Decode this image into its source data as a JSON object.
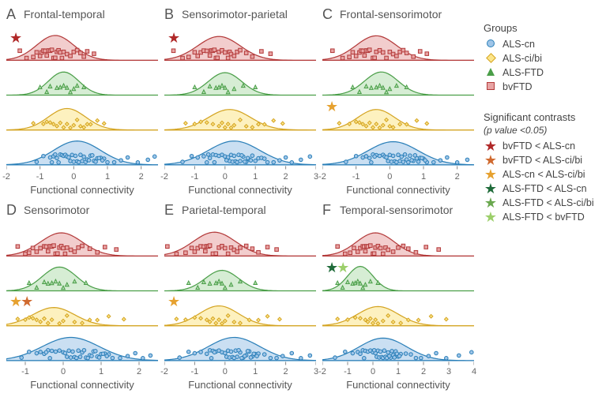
{
  "groups": [
    {
      "id": "als-cn",
      "label": "ALS-cn",
      "fill": "#9fc5e8",
      "stroke": "#2a7fb8",
      "marker": "circle",
      "y": 0
    },
    {
      "id": "als-cibi",
      "label": "ALS-ci/bi",
      "fill": "#fce58a",
      "stroke": "#d4a422",
      "marker": "diamond",
      "y": 1
    },
    {
      "id": "als-ftd",
      "label": "ALS-FTD",
      "fill": "#b5deb1",
      "stroke": "#4a9e48",
      "marker": "triangle",
      "y": 2
    },
    {
      "id": "bvftd",
      "label": "bvFTD",
      "fill": "#e8a4a4",
      "stroke": "#b33a3a",
      "marker": "square",
      "y": 3
    }
  ],
  "contrasts": [
    {
      "id": "c1",
      "label": "bvFTD < ALS-cn",
      "star_color": "#b02828"
    },
    {
      "id": "c2",
      "label": "bvFTD < ALS-ci/bi",
      "star_color": "#d06a2f"
    },
    {
      "id": "c3",
      "label": "ALS-cn < ALS-ci/bi",
      "star_color": "#e6a12f"
    },
    {
      "id": "c4",
      "label": "ALS-FTD < ALS-cn",
      "star_color": "#1f6b3a"
    },
    {
      "id": "c5",
      "label": "ALS-FTD < ALS-ci/bi",
      "star_color": "#6aa84f"
    },
    {
      "id": "c6",
      "label": "ALS-FTD < bvFTD",
      "star_color": "#9ccf6a"
    }
  ],
  "legend_title_groups": "Groups",
  "legend_title_contrasts": "Significant contrasts",
  "legend_sub_contrasts": "(p value <0.05)",
  "xlabel": "Functional connectivity",
  "panel_style": {
    "background": "#ffffff",
    "axis_color": "#888888",
    "tick_color": "#666666",
    "fill_opacity": 0.55,
    "stroke_width": 1.2,
    "marker_size": 4.5,
    "jitter_height": 0.24,
    "plot_h_per_group": 0.9
  },
  "panels": [
    {
      "id": "A",
      "title": "Frontal-temporal",
      "xlim": [
        -2,
        2.5
      ],
      "xticks": [
        -2,
        -1,
        0,
        1,
        2
      ],
      "stars": [
        {
          "contrast": "c1",
          "at_group": 3
        }
      ],
      "densities": {
        "als-cn": {
          "mu": 0.1,
          "sigma": 0.7,
          "h": 0.72
        },
        "als-cibi": {
          "mu": -0.2,
          "sigma": 0.55,
          "h": 0.65
        },
        "als-ftd": {
          "mu": -0.3,
          "sigma": 0.45,
          "h": 0.7
        },
        "bvftd": {
          "mu": -0.55,
          "sigma": 0.55,
          "h": 0.75
        }
      },
      "points": {
        "als-cn": [
          -1.1,
          -0.9,
          -0.7,
          -0.6,
          -0.5,
          -0.4,
          -0.35,
          -0.3,
          -0.25,
          -0.2,
          -0.15,
          -0.1,
          -0.05,
          0,
          0.05,
          0.1,
          0.15,
          0.2,
          0.25,
          0.3,
          0.35,
          0.4,
          0.5,
          0.6,
          0.7,
          0.8,
          0.9,
          1.0,
          1.2,
          1.4,
          1.6,
          1.9,
          2.2,
          2.4,
          -0.45,
          -0.55,
          -0.65,
          0.45,
          0.55,
          0.65,
          0.75,
          0.85
        ],
        "als-cibi": [
          -1.2,
          -0.9,
          -0.8,
          -0.7,
          -0.6,
          -0.5,
          -0.4,
          -0.3,
          -0.2,
          -0.1,
          0,
          0.1,
          0.2,
          0.3,
          0.4,
          0.5,
          0.7,
          0.9
        ],
        "als-ftd": [
          -1.0,
          -0.8,
          -0.7,
          -0.5,
          -0.4,
          -0.3,
          -0.2,
          -0.1,
          0,
          0.1,
          0.3
        ],
        "bvftd": [
          -1.6,
          -1.4,
          -1.2,
          -1.1,
          -1.0,
          -0.95,
          -0.9,
          -0.85,
          -0.8,
          -0.75,
          -0.7,
          -0.65,
          -0.6,
          -0.55,
          -0.5,
          -0.45,
          -0.4,
          -0.35,
          -0.3,
          -0.2,
          -0.1,
          0,
          0.1,
          0.2,
          0.3,
          0.4,
          0.6
        ]
      }
    },
    {
      "id": "B",
      "title": "Sensorimotor-parietal",
      "xlim": [
        -2,
        3
      ],
      "xticks": [
        -2,
        -1,
        0,
        1,
        2,
        3
      ],
      "stars": [
        {
          "contrast": "c1",
          "at_group": 3
        }
      ],
      "densities": {
        "als-cn": {
          "mu": 0.3,
          "sigma": 0.85,
          "h": 0.72
        },
        "als-cibi": {
          "mu": 0.15,
          "sigma": 0.7,
          "h": 0.62
        },
        "als-ftd": {
          "mu": 0.0,
          "sigma": 0.55,
          "h": 0.68
        },
        "bvftd": {
          "mu": -0.2,
          "sigma": 0.7,
          "h": 0.72
        }
      },
      "points": {
        "als-cn": [
          -1.4,
          -1.1,
          -0.9,
          -0.7,
          -0.5,
          -0.4,
          -0.3,
          -0.2,
          -0.1,
          0,
          0.1,
          0.15,
          0.2,
          0.25,
          0.3,
          0.35,
          0.4,
          0.45,
          0.5,
          0.6,
          0.7,
          0.8,
          0.9,
          1.0,
          1.1,
          1.2,
          1.3,
          1.4,
          1.6,
          1.8,
          2.0,
          2.2,
          2.5,
          2.8,
          -0.6,
          -0.55,
          -0.35,
          0.05,
          0.55,
          0.65,
          0.75,
          0.85
        ],
        "als-cibi": [
          -1.3,
          -1.0,
          -0.8,
          -0.6,
          -0.4,
          -0.2,
          -0.1,
          0,
          0.1,
          0.2,
          0.3,
          0.5,
          0.7,
          0.9,
          1.1,
          1.3,
          1.6,
          1.9
        ],
        "als-ftd": [
          -1.0,
          -0.7,
          -0.5,
          -0.3,
          -0.2,
          -0.1,
          0,
          0.1,
          0.3,
          0.6,
          1.0
        ],
        "bvftd": [
          -1.7,
          -1.4,
          -1.2,
          -1.0,
          -0.9,
          -0.8,
          -0.7,
          -0.6,
          -0.5,
          -0.45,
          -0.4,
          -0.35,
          -0.3,
          -0.25,
          -0.2,
          -0.1,
          0,
          0.1,
          0.15,
          0.2,
          0.3,
          0.4,
          0.5,
          0.7,
          0.9,
          1.2,
          1.5
        ]
      }
    },
    {
      "id": "C",
      "title": "Frontal-sensorimotor",
      "xlim": [
        -2,
        2.5
      ],
      "xticks": [
        -2,
        -1,
        0,
        1,
        2
      ],
      "stars": [
        {
          "contrast": "c3",
          "at_group": 1
        }
      ],
      "densities": {
        "als-cn": {
          "mu": 0.1,
          "sigma": 0.75,
          "h": 0.7
        },
        "als-cibi": {
          "mu": -0.4,
          "sigma": 0.55,
          "h": 0.62
        },
        "als-ftd": {
          "mu": -0.25,
          "sigma": 0.5,
          "h": 0.7
        },
        "bvftd": {
          "mu": -0.4,
          "sigma": 0.6,
          "h": 0.74
        }
      },
      "points": {
        "als-cn": [
          -1.3,
          -1.0,
          -0.8,
          -0.7,
          -0.6,
          -0.5,
          -0.4,
          -0.3,
          -0.2,
          -0.15,
          -0.1,
          -0.05,
          0,
          0.05,
          0.1,
          0.15,
          0.2,
          0.25,
          0.3,
          0.35,
          0.4,
          0.5,
          0.6,
          0.7,
          0.8,
          0.9,
          1.0,
          1.1,
          1.3,
          1.5,
          1.7,
          2.0,
          2.3,
          -0.45,
          -0.55,
          0.45,
          0.55,
          0.65,
          0.75,
          0.85,
          0.95,
          1.05
        ],
        "als-cibi": [
          -1.5,
          -1.2,
          -1.0,
          -0.9,
          -0.8,
          -0.7,
          -0.6,
          -0.5,
          -0.4,
          -0.3,
          -0.2,
          -0.1,
          0,
          0.1,
          0.3,
          0.5,
          0.8,
          1.1
        ],
        "als-ftd": [
          -1.1,
          -0.9,
          -0.7,
          -0.55,
          -0.4,
          -0.3,
          -0.2,
          -0.1,
          0,
          0.2,
          0.5
        ],
        "bvftd": [
          -1.7,
          -1.4,
          -1.2,
          -1.1,
          -1.0,
          -0.9,
          -0.85,
          -0.8,
          -0.75,
          -0.7,
          -0.65,
          -0.6,
          -0.5,
          -0.45,
          -0.4,
          -0.3,
          -0.2,
          -0.1,
          0,
          0.1,
          0.2,
          0.3,
          0.4,
          0.5,
          0.7,
          0.9,
          1.1
        ]
      }
    },
    {
      "id": "D",
      "title": "Sensorimotor",
      "xlim": [
        -1.5,
        2.5
      ],
      "xticks": [
        -1,
        0,
        1,
        2
      ],
      "stars": [
        {
          "contrast": "c3",
          "at_group": 1
        },
        {
          "contrast": "c2",
          "at_group": 1
        }
      ],
      "densities": {
        "als-cn": {
          "mu": 0.2,
          "sigma": 0.75,
          "h": 0.7
        },
        "als-cibi": {
          "mu": -0.25,
          "sigma": 0.55,
          "h": 0.55
        },
        "als-ftd": {
          "mu": -0.1,
          "sigma": 0.45,
          "h": 0.72
        },
        "bvftd": {
          "mu": -0.05,
          "sigma": 0.55,
          "h": 0.7
        }
      },
      "points": {
        "als-cn": [
          -1.1,
          -0.9,
          -0.7,
          -0.6,
          -0.5,
          -0.4,
          -0.3,
          -0.2,
          -0.1,
          0,
          0.05,
          0.1,
          0.15,
          0.2,
          0.25,
          0.3,
          0.35,
          0.4,
          0.45,
          0.5,
          0.6,
          0.7,
          0.8,
          0.9,
          1.0,
          1.1,
          1.2,
          1.3,
          1.5,
          1.7,
          1.9,
          2.1,
          2.3,
          -0.45,
          -0.35,
          0.55,
          0.65,
          0.75,
          0.85,
          0.95,
          1.05,
          1.15
        ],
        "als-cibi": [
          -1.2,
          -1.0,
          -0.9,
          -0.8,
          -0.7,
          -0.6,
          -0.5,
          -0.4,
          -0.3,
          -0.1,
          0,
          0.1,
          0.3,
          0.5,
          0.7,
          0.9,
          1.2,
          1.6
        ],
        "als-ftd": [
          -0.9,
          -0.7,
          -0.5,
          -0.4,
          -0.3,
          -0.2,
          -0.1,
          0,
          0.1,
          0.3,
          0.6
        ],
        "bvftd": [
          -1.2,
          -1.0,
          -0.9,
          -0.8,
          -0.7,
          -0.6,
          -0.5,
          -0.45,
          -0.4,
          -0.35,
          -0.3,
          -0.25,
          -0.2,
          -0.15,
          -0.1,
          -0.05,
          0,
          0.05,
          0.1,
          0.2,
          0.3,
          0.4,
          0.5,
          0.7,
          0.9,
          1.1,
          1.4
        ]
      }
    },
    {
      "id": "E",
      "title": "Parietal-temporal",
      "xlim": [
        -2,
        3
      ],
      "xticks": [
        -2,
        -1,
        0,
        1,
        2,
        3
      ],
      "stars": [
        {
          "contrast": "c3",
          "at_group": 1
        }
      ],
      "densities": {
        "als-cn": {
          "mu": 0.3,
          "sigma": 0.85,
          "h": 0.7
        },
        "als-cibi": {
          "mu": -0.2,
          "sigma": 0.65,
          "h": 0.6
        },
        "als-ftd": {
          "mu": -0.1,
          "sigma": 0.55,
          "h": 0.62
        },
        "bvftd": {
          "mu": -0.35,
          "sigma": 0.7,
          "h": 0.72
        }
      },
      "points": {
        "als-cn": [
          -1.5,
          -1.2,
          -1.0,
          -0.8,
          -0.6,
          -0.5,
          -0.4,
          -0.3,
          -0.2,
          -0.1,
          0,
          0.05,
          0.1,
          0.15,
          0.2,
          0.25,
          0.3,
          0.35,
          0.4,
          0.5,
          0.6,
          0.7,
          0.8,
          0.9,
          1.0,
          1.1,
          1.3,
          1.5,
          1.7,
          1.9,
          2.2,
          2.5,
          2.8,
          -0.35,
          -0.45,
          0.45,
          0.55,
          0.65,
          0.75,
          0.85,
          0.95,
          1.05
        ],
        "als-cibi": [
          -1.6,
          -1.3,
          -1.0,
          -0.8,
          -0.6,
          -0.5,
          -0.4,
          -0.3,
          -0.2,
          -0.1,
          0,
          0.1,
          0.3,
          0.5,
          0.8,
          1.1,
          1.4,
          1.8
        ],
        "als-ftd": [
          -1.2,
          -0.9,
          -0.7,
          -0.5,
          -0.3,
          -0.2,
          -0.1,
          0,
          0.2,
          0.5,
          1.0
        ],
        "bvftd": [
          -1.9,
          -1.6,
          -1.3,
          -1.1,
          -1.0,
          -0.9,
          -0.8,
          -0.7,
          -0.65,
          -0.6,
          -0.55,
          -0.5,
          -0.4,
          -0.3,
          -0.2,
          -0.1,
          0,
          0.1,
          0.2,
          0.3,
          0.4,
          0.5,
          0.7,
          0.9,
          1.1,
          1.4,
          1.7
        ]
      }
    },
    {
      "id": "F",
      "title": "Temporal-sensorimotor",
      "xlim": [
        -2,
        4
      ],
      "xticks": [
        -2,
        -1,
        0,
        1,
        2,
        3,
        4
      ],
      "stars": [
        {
          "contrast": "c4",
          "at_group": 2
        },
        {
          "contrast": "c6",
          "at_group": 2
        }
      ],
      "densities": {
        "als-cn": {
          "mu": 0.4,
          "sigma": 0.95,
          "h": 0.68
        },
        "als-cibi": {
          "mu": 0.2,
          "sigma": 0.8,
          "h": 0.58
        },
        "als-ftd": {
          "mu": -0.5,
          "sigma": 0.5,
          "h": 0.74
        },
        "bvftd": {
          "mu": 0.1,
          "sigma": 0.75,
          "h": 0.7
        }
      },
      "points": {
        "als-cn": [
          -1.5,
          -1.1,
          -0.8,
          -0.6,
          -0.5,
          -0.4,
          -0.3,
          -0.2,
          -0.1,
          0,
          0.1,
          0.15,
          0.2,
          0.25,
          0.3,
          0.35,
          0.4,
          0.45,
          0.5,
          0.6,
          0.7,
          0.8,
          0.9,
          1.0,
          1.1,
          1.3,
          1.5,
          1.7,
          1.9,
          2.2,
          2.5,
          2.9,
          3.4,
          3.9,
          -0.35,
          0.05,
          0.55,
          0.65,
          0.75,
          0.85,
          0.95,
          1.05
        ],
        "als-cibi": [
          -1.4,
          -1.0,
          -0.7,
          -0.5,
          -0.3,
          -0.2,
          -0.1,
          0,
          0.1,
          0.2,
          0.4,
          0.6,
          0.8,
          1.1,
          1.4,
          1.8,
          2.3,
          2.9
        ],
        "als-ftd": [
          -1.4,
          -1.2,
          -1.0,
          -0.8,
          -0.7,
          -0.6,
          -0.5,
          -0.4,
          -0.3,
          -0.1,
          0.2
        ],
        "bvftd": [
          -1.4,
          -1.1,
          -0.9,
          -0.75,
          -0.6,
          -0.5,
          -0.4,
          -0.35,
          -0.3,
          -0.25,
          -0.2,
          -0.1,
          0,
          0.05,
          0.1,
          0.2,
          0.3,
          0.4,
          0.5,
          0.6,
          0.8,
          1.0,
          1.2,
          1.4,
          1.7,
          2.1,
          2.6
        ]
      }
    }
  ]
}
